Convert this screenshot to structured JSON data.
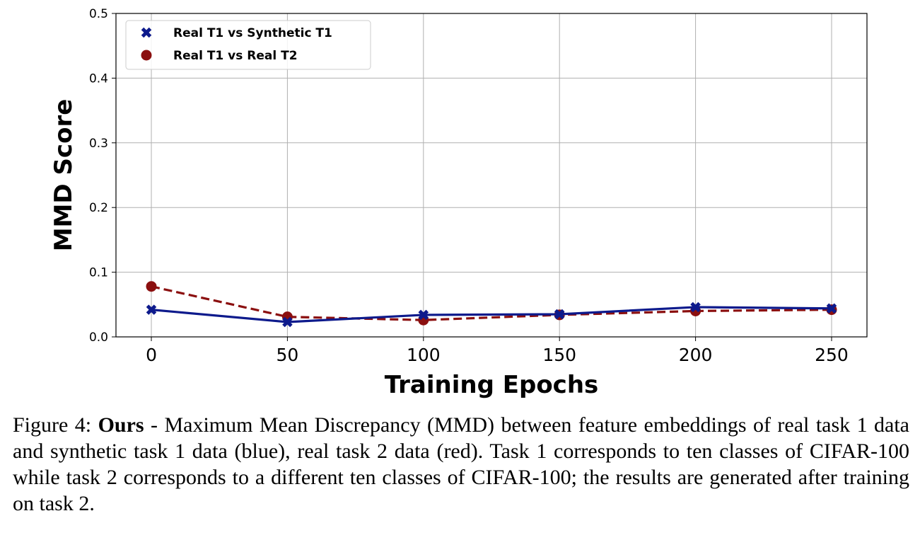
{
  "chart_data": {
    "type": "line",
    "xlabel": "Training Epochs",
    "ylabel": "MMD Score",
    "x": [
      0,
      50,
      100,
      150,
      200,
      250
    ],
    "xticks": [
      "0",
      "50",
      "100",
      "150",
      "200",
      "250"
    ],
    "xlim": [
      -13,
      263
    ],
    "ylim": [
      0,
      0.5
    ],
    "yticks": [
      "0.0",
      "0.1",
      "0.2",
      "0.3",
      "0.4",
      "0.5"
    ],
    "grid": true,
    "legend_position": "top-left",
    "series": [
      {
        "name": "Real T1 vs Synthetic T1",
        "values": [
          0.042,
          0.023,
          0.034,
          0.035,
          0.046,
          0.044
        ],
        "color": "#0d1a8c",
        "line_style": "solid",
        "marker": "x"
      },
      {
        "name": "Real T1 vs Real T2",
        "values": [
          0.078,
          0.031,
          0.026,
          0.034,
          0.04,
          0.042
        ],
        "color": "#8b0f0f",
        "line_style": "dashed",
        "marker": "o"
      }
    ]
  },
  "caption": {
    "prefix": "Figure 4: ",
    "bold": "Ours",
    "text": " - Maximum Mean Discrepancy (MMD) between feature embeddings of real task 1 data and synthetic task 1 data (blue), real task 2 data (red). Task 1 corresponds to ten classes of CIFAR-100 while task 2 corresponds to a different ten classes of CIFAR-100; the results are generated after training on task 2."
  }
}
